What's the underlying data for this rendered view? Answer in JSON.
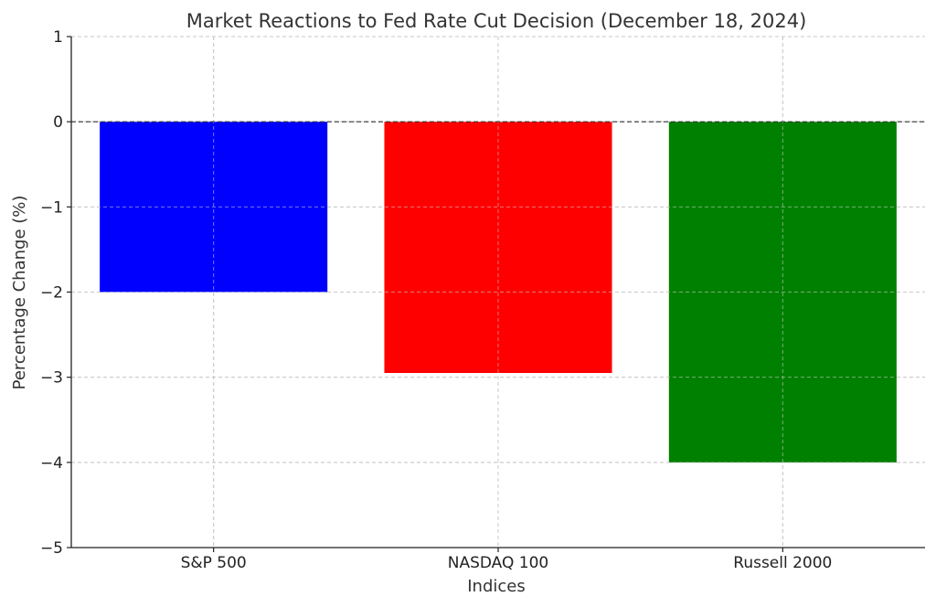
{
  "chart_data": {
    "type": "bar",
    "title": "Market Reactions to Fed Rate Cut Decision (December 18, 2024)",
    "xlabel": "Indices",
    "ylabel": "Percentage Change (%)",
    "categories": [
      "S&P 500",
      "NASDAQ 100",
      "Russell 2000"
    ],
    "values": [
      -2.0,
      -2.95,
      -4.0
    ],
    "colors": [
      "#0000ff",
      "#ff0000",
      "#008000"
    ],
    "ylim": [
      -5,
      1
    ],
    "yticks": [
      1,
      0,
      -1,
      -2,
      -3,
      -4,
      -5
    ],
    "ytick_labels": [
      "1",
      "0",
      "−1",
      "−2",
      "−3",
      "−4",
      "−5"
    ],
    "grid": true,
    "reference_line": {
      "y": 0,
      "style": "dashed"
    }
  }
}
